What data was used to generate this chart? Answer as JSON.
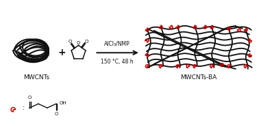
{
  "background_color": "#ffffff",
  "text_mwcnts": "MWCNTs",
  "text_mwcnts_ba": "MWCNTs-BA",
  "text_alcl3": "AlCl₃/NMP",
  "text_temp": "150 °C, 48 h",
  "black": "#111111",
  "red": "#cc0000",
  "lw_tube": 1.5,
  "lw_ring": 1.1,
  "font_size_label": 6.5,
  "font_size_chem": 5.5
}
